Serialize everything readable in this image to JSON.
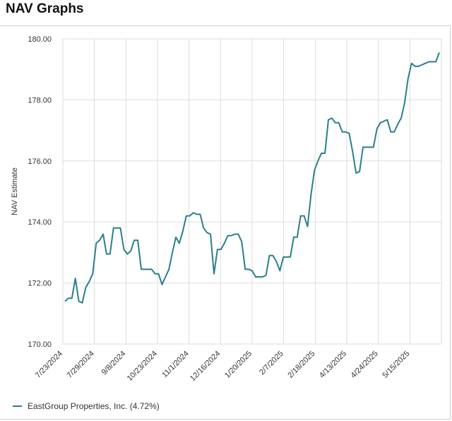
{
  "page": {
    "title": "NAV Graphs"
  },
  "colors": {
    "line": "#2a7f8c",
    "grid": "#dddddd",
    "text": "#333333"
  },
  "chart_data": {
    "type": "line",
    "title": "",
    "xlabel": "",
    "ylabel": "NAV Estimate",
    "ylim": [
      170,
      180
    ],
    "yticks": [
      "170.00",
      "172.00",
      "174.00",
      "176.00",
      "178.00",
      "180.00"
    ],
    "xticks": [
      "7/23/2024",
      "7/29/2024",
      "9/8/2024",
      "10/23/2024",
      "11/1/2024",
      "12/16/2024",
      "1/20/2025",
      "2/7/2025",
      "2/18/2025",
      "4/13/2025",
      "4/24/2025",
      "5/15/2025"
    ],
    "grid": true,
    "legend_position": "bottom-left",
    "series": [
      {
        "name": "EastGroup Properties, Inc. (4.72%)",
        "values": [
          171.4,
          171.5,
          171.5,
          172.15,
          171.4,
          171.35,
          171.85,
          172.05,
          172.3,
          173.3,
          173.4,
          173.6,
          172.95,
          172.95,
          173.8,
          173.8,
          173.8,
          173.1,
          172.95,
          173.05,
          173.4,
          173.4,
          172.45,
          172.45,
          172.45,
          172.45,
          172.3,
          172.3,
          171.95,
          172.2,
          172.45,
          173.0,
          173.5,
          173.3,
          173.7,
          174.2,
          174.2,
          174.3,
          174.25,
          174.25,
          173.8,
          173.65,
          173.6,
          172.3,
          173.1,
          173.1,
          173.3,
          173.55,
          173.55,
          173.6,
          173.6,
          173.35,
          172.45,
          172.45,
          172.4,
          172.2,
          172.2,
          172.2,
          172.25,
          172.9,
          172.9,
          172.7,
          172.4,
          172.85,
          172.85,
          172.85,
          173.5,
          173.5,
          174.2,
          174.2,
          173.85,
          174.9,
          175.7,
          176.0,
          176.25,
          176.25,
          177.35,
          177.4,
          177.25,
          177.25,
          176.95,
          176.95,
          176.9,
          176.3,
          175.6,
          175.65,
          176.45,
          176.45,
          176.45,
          176.45,
          177.05,
          177.25,
          177.3,
          177.35,
          176.95,
          176.95,
          177.2,
          177.4,
          177.9,
          178.7,
          179.2,
          179.1,
          179.1,
          179.15,
          179.2,
          179.25,
          179.25,
          179.25,
          179.55
        ]
      }
    ]
  }
}
